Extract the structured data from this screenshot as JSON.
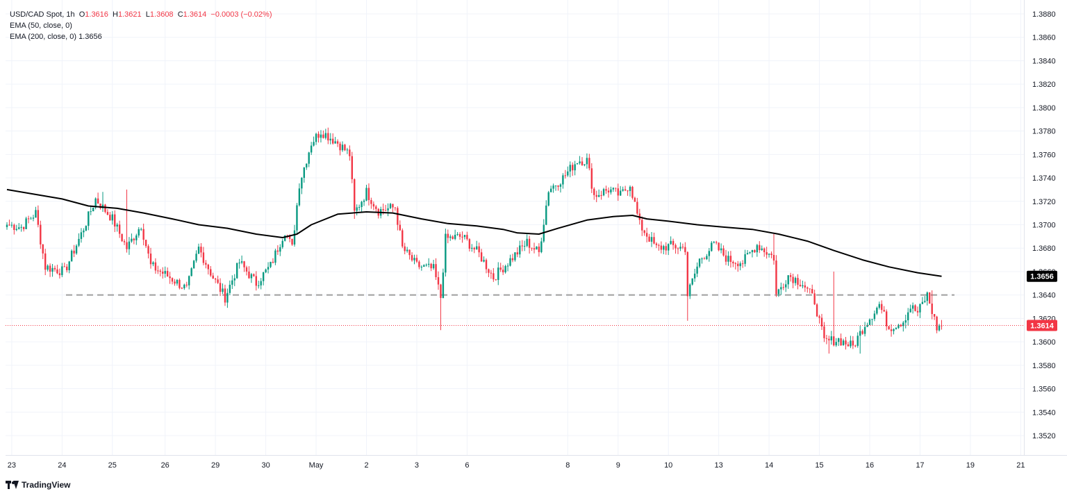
{
  "legend": {
    "symbol": "USD/CAD Spot",
    "interval": "1h",
    "open_label": "O",
    "open": "1.3616",
    "high_label": "H",
    "high": "1.3621",
    "low_label": "L",
    "low": "1.3608",
    "close_label": "C",
    "close": "1.3614",
    "change": "−0.0003 (−0.02%)",
    "ema50": "EMA (50, close, 0)",
    "ema200": "EMA (200, close, 0)",
    "ema200_value": "1.3656"
  },
  "brand": "TradingView",
  "colors": {
    "up": "#089981",
    "down": "#f23645",
    "ema200": "#000000",
    "support": "#9e9e9e",
    "price_line": "#f23645",
    "grid": "#f0f3fa",
    "axis_text": "#131722"
  },
  "chart_data": {
    "type": "candlestick",
    "instrument": "USD/CAD Spot",
    "interval": "1h",
    "ylim": [
      1.3505,
      1.389
    ],
    "y_ticks": [
      "1.3880",
      "1.3860",
      "1.3840",
      "1.3820",
      "1.3800",
      "1.3780",
      "1.3760",
      "1.3740",
      "1.3720",
      "1.3700",
      "1.3680",
      "1.3660",
      "1.3640",
      "1.3620",
      "1.3600",
      "1.3580",
      "1.3560",
      "1.3540",
      "1.3520"
    ],
    "x_ticks": [
      {
        "label": "23",
        "bar": 2
      },
      {
        "label": "24",
        "bar": 23
      },
      {
        "label": "25",
        "bar": 44
      },
      {
        "label": "26",
        "bar": 66
      },
      {
        "label": "29",
        "bar": 87
      },
      {
        "label": "30",
        "bar": 108
      },
      {
        "label": "May",
        "bar": 129
      },
      {
        "label": "2",
        "bar": 150
      },
      {
        "label": "3",
        "bar": 171
      },
      {
        "label": "6",
        "bar": 192
      },
      {
        "label": "8",
        "bar": 234
      },
      {
        "label": "9",
        "bar": 255
      },
      {
        "label": "10",
        "bar": 276
      },
      {
        "label": "13",
        "bar": 297
      },
      {
        "label": "14",
        "bar": 318
      },
      {
        "label": "15",
        "bar": 339
      },
      {
        "label": "16",
        "bar": 360
      },
      {
        "label": "17",
        "bar": 381
      },
      {
        "label": "19",
        "bar": 402
      },
      {
        "label": "21",
        "bar": 423
      }
    ],
    "support_level": 1.364,
    "current_price": 1.3614,
    "current_price_label": "1.3614",
    "ema200_last_label": "1.3656",
    "ema200_last": 1.3656,
    "close_path": [
      [
        0,
        1.37
      ],
      [
        6,
        1.3698
      ],
      [
        12,
        1.371
      ],
      [
        16,
        1.3664
      ],
      [
        24,
        1.366
      ],
      [
        31,
        1.3692
      ],
      [
        37,
        1.3722
      ],
      [
        44,
        1.3705
      ],
      [
        50,
        1.368
      ],
      [
        56,
        1.37
      ],
      [
        60,
        1.3665
      ],
      [
        68,
        1.3655
      ],
      [
        75,
        1.3645
      ],
      [
        80,
        1.368
      ],
      [
        86,
        1.3655
      ],
      [
        91,
        1.3638
      ],
      [
        97,
        1.3668
      ],
      [
        104,
        1.365
      ],
      [
        110,
        1.3665
      ],
      [
        116,
        1.3695
      ],
      [
        119,
        1.368
      ],
      [
        122,
        1.3735
      ],
      [
        127,
        1.377
      ],
      [
        131,
        1.378
      ],
      [
        138,
        1.377
      ],
      [
        143,
        1.376
      ],
      [
        145,
        1.371
      ],
      [
        150,
        1.3728
      ],
      [
        155,
        1.3712
      ],
      [
        162,
        1.3715
      ],
      [
        165,
        1.368
      ],
      [
        171,
        1.3665
      ],
      [
        178,
        1.3662
      ],
      [
        181,
        1.3638
      ],
      [
        183,
        1.3688
      ],
      [
        190,
        1.369
      ],
      [
        197,
        1.3675
      ],
      [
        203,
        1.3655
      ],
      [
        210,
        1.367
      ],
      [
        217,
        1.3685
      ],
      [
        222,
        1.3676
      ],
      [
        226,
        1.373
      ],
      [
        232,
        1.374
      ],
      [
        238,
        1.3755
      ],
      [
        242,
        1.3755
      ],
      [
        245,
        1.3725
      ],
      [
        251,
        1.373
      ],
      [
        256,
        1.3725
      ],
      [
        260,
        1.3735
      ],
      [
        264,
        1.37
      ],
      [
        271,
        1.368
      ],
      [
        277,
        1.3682
      ],
      [
        283,
        1.368
      ],
      [
        284,
        1.364
      ],
      [
        289,
        1.367
      ],
      [
        295,
        1.3683
      ],
      [
        301,
        1.367
      ],
      [
        307,
        1.3668
      ],
      [
        313,
        1.3683
      ],
      [
        320,
        1.3672
      ],
      [
        321,
        1.364
      ],
      [
        326,
        1.3657
      ],
      [
        332,
        1.365
      ],
      [
        337,
        1.3635
      ],
      [
        341,
        1.36
      ],
      [
        347,
        1.3602
      ],
      [
        353,
        1.3596
      ],
      [
        358,
        1.3615
      ],
      [
        364,
        1.3632
      ],
      [
        368,
        1.3612
      ],
      [
        374,
        1.3618
      ],
      [
        377,
        1.363
      ],
      [
        380,
        1.3625
      ],
      [
        384,
        1.364
      ],
      [
        388,
        1.3612
      ],
      [
        390,
        1.3614
      ]
    ],
    "spikes": [
      {
        "bar": 40,
        "high": 1.3728
      },
      {
        "bar": 50,
        "high": 1.373
      },
      {
        "bar": 145,
        "low": 1.3705
      },
      {
        "bar": 181,
        "low": 1.361
      },
      {
        "bar": 284,
        "low": 1.3618
      },
      {
        "bar": 320,
        "high": 1.3692
      },
      {
        "bar": 343,
        "low": 1.359
      },
      {
        "bar": 345,
        "high": 1.366
      },
      {
        "bar": 356,
        "low": 1.359
      },
      {
        "bar": 386,
        "high": 1.3644
      }
    ],
    "ema200_path": [
      [
        0,
        1.373
      ],
      [
        23,
        1.3722
      ],
      [
        34,
        1.3716
      ],
      [
        46,
        1.3714
      ],
      [
        57,
        1.371
      ],
      [
        69,
        1.3705
      ],
      [
        80,
        1.37
      ],
      [
        92,
        1.3697
      ],
      [
        104,
        1.3692
      ],
      [
        115,
        1.3689
      ],
      [
        121,
        1.3692
      ],
      [
        127,
        1.37
      ],
      [
        138,
        1.3709
      ],
      [
        150,
        1.3711
      ],
      [
        161,
        1.371
      ],
      [
        173,
        1.3705
      ],
      [
        184,
        1.3701
      ],
      [
        196,
        1.3699
      ],
      [
        207,
        1.3696
      ],
      [
        213,
        1.3693
      ],
      [
        222,
        1.3692
      ],
      [
        230,
        1.3697
      ],
      [
        242,
        1.3704
      ],
      [
        253,
        1.3707
      ],
      [
        261,
        1.3708
      ],
      [
        267,
        1.3705
      ],
      [
        276,
        1.3703
      ],
      [
        288,
        1.37
      ],
      [
        299,
        1.3698
      ],
      [
        311,
        1.3696
      ],
      [
        322,
        1.3692
      ],
      [
        334,
        1.3686
      ],
      [
        345,
        1.3678
      ],
      [
        357,
        1.367
      ],
      [
        368,
        1.3664
      ],
      [
        380,
        1.3659
      ],
      [
        390,
        1.3656
      ]
    ]
  }
}
